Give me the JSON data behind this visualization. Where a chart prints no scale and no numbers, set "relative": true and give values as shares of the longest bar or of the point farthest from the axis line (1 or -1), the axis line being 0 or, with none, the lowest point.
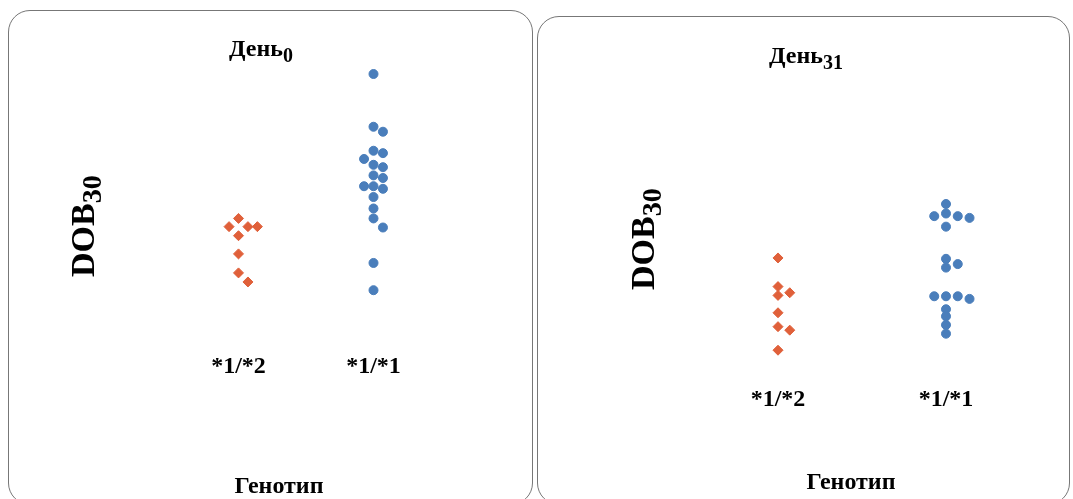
{
  "chart_data": [
    {
      "type": "scatter",
      "title": "День$_{0}$",
      "ylabel": "DOB$_{30}$",
      "xlabel": "Генотип",
      "categories": [
        "*1/*2",
        "*1/*1"
      ],
      "relative": true,
      "grid": false,
      "legend": false,
      "series": [
        {
          "type": "scatter",
          "marker": "diamond",
          "color": "#e0603a",
          "x": [
            "*1/*2",
            "*1/*2",
            "*1/*2",
            "*1/*2",
            "*1/*2",
            "*1/*2",
            "*1/*2",
            "*1/*2"
          ],
          "values": [
            0.332,
            0.294,
            0.294,
            0.294,
            0.252,
            0.168,
            0.08,
            0.038
          ]
        },
        {
          "type": "scatter",
          "marker": "circle",
          "color": "#4a7ebb",
          "x": [
            "*1/*1",
            "*1/*1",
            "*1/*1",
            "*1/*1",
            "*1/*1",
            "*1/*1",
            "*1/*1",
            "*1/*1",
            "*1/*1",
            "*1/*1",
            "*1/*1",
            "*1/*1",
            "*1/*1",
            "*1/*1",
            "*1/*1",
            "*1/*1",
            "*1/*1",
            "*1/*1",
            "*1/*1"
          ],
          "values": [
            1,
            0.756,
            0.733,
            0.645,
            0.634,
            0.607,
            0.58,
            0.569,
            0.531,
            0.519,
            0.481,
            0.481,
            0.469,
            0.431,
            0.378,
            0.332,
            0.29,
            0.126,
            0
          ]
        }
      ]
    },
    {
      "type": "scatter",
      "title": "День$_{31}$",
      "ylabel": "DOB$_{30}$",
      "xlabel": "Генотип",
      "categories": [
        "*1/*2",
        "*1/*1"
      ],
      "relative": true,
      "grid": false,
      "legend": false,
      "series": [
        {
          "type": "scatter",
          "marker": "diamond",
          "color": "#e0603a",
          "x": [
            "*1/*2",
            "*1/*2",
            "*1/*2",
            "*1/*2",
            "*1/*2",
            "*1/*2",
            "*1/*2",
            "*1/*2"
          ],
          "values": [
            0.631,
            0.435,
            0.393,
            0.375,
            0.256,
            0.161,
            0.137,
            0
          ]
        },
        {
          "type": "scatter",
          "marker": "circle",
          "color": "#4a7ebb",
          "x": [
            "*1/*1",
            "*1/*1",
            "*1/*1",
            "*1/*1",
            "*1/*1",
            "*1/*1",
            "*1/*1",
            "*1/*1",
            "*1/*1",
            "*1/*1",
            "*1/*1",
            "*1/*1",
            "*1/*1",
            "*1/*1",
            "*1/*1",
            "*1/*1",
            "*1/*1"
          ],
          "values": [
            1,
            0.935,
            0.917,
            0.917,
            0.905,
            0.845,
            0.625,
            0.589,
            0.565,
            0.369,
            0.369,
            0.369,
            0.351,
            0.28,
            0.232,
            0.173,
            0.113
          ]
        }
      ]
    }
  ]
}
